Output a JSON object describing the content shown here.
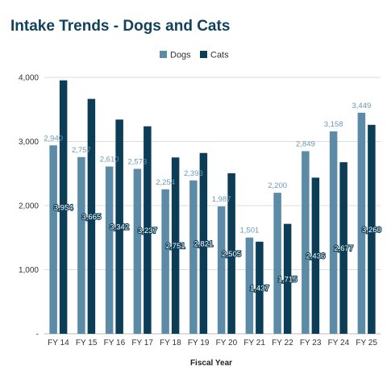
{
  "chart_data": {
    "type": "bar",
    "title": "Intake Trends - Dogs and Cats",
    "xlabel": "Fiscal Year",
    "ylabel": "",
    "ylim": [
      0,
      4000
    ],
    "yticks": [
      0,
      1000,
      2000,
      3000,
      4000
    ],
    "ytick_labels": [
      "-",
      "1,000",
      "2,000",
      "3,000",
      "4,000"
    ],
    "grid": true,
    "legend_position": "top",
    "categories": [
      "FY 14",
      "FY 15",
      "FY 16",
      "FY 17",
      "FY 18",
      "FY 19",
      "FY 20",
      "FY 21",
      "FY 22",
      "FY 23",
      "FY 24",
      "FY 25"
    ],
    "series": [
      {
        "name": "Dogs",
        "color": "#5b8ba6",
        "values": [
          2940,
          2757,
          2610,
          2573,
          2254,
          2393,
          1987,
          1501,
          2200,
          2849,
          3158,
          3449
        ],
        "labels": [
          "2,940",
          "2,757",
          "2,610",
          "2,573",
          "2,254",
          "2,393",
          "1,987",
          "1,501",
          "2,200",
          "2,849",
          "3,158",
          "3,449"
        ]
      },
      {
        "name": "Cats",
        "color": "#0b3d56",
        "values": [
          3954,
          3665,
          3342,
          3237,
          2751,
          2821,
          2505,
          1437,
          1715,
          2436,
          2677,
          3260
        ],
        "labels": [
          "3,954",
          "3,665",
          "3,342",
          "3,237",
          "2,751",
          "2,821",
          "2,505",
          "1,437",
          "1,715",
          "2,436",
          "2,677",
          "3,260"
        ]
      }
    ]
  }
}
